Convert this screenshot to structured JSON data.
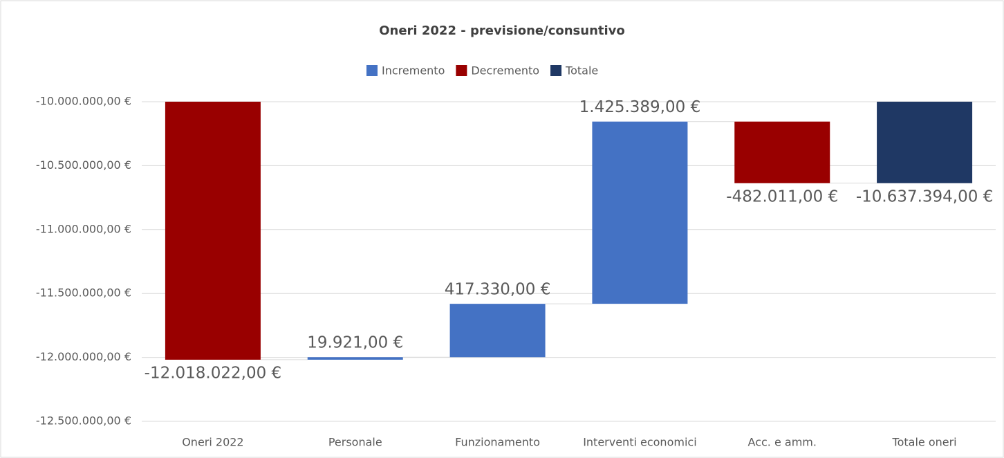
{
  "chart_data": {
    "type": "waterfall",
    "title": "Oneri 2022 - previsione/consuntivo",
    "legend": [
      {
        "name": "Incremento",
        "color": "#4472c4"
      },
      {
        "name": "Decremento",
        "color": "#990000"
      },
      {
        "name": "Totale",
        "color": "#1f3864"
      }
    ],
    "categories": [
      "Oneri 2022",
      "Personale",
      "Funzionamento",
      "Interventi economici",
      "Acc. e amm.",
      "Totale oneri"
    ],
    "values": [
      -12018022,
      19921,
      417330,
      1425389,
      -482011,
      -10637394
    ],
    "value_labels": [
      "-12.018.022,00 €",
      "19.921,00 €",
      "417.330,00 €",
      "1.425.389,00 €",
      "-482.011,00 €",
      "-10.637.394,00 €"
    ],
    "bar_colors": [
      "#990000",
      "#4472c4",
      "#4472c4",
      "#4472c4",
      "#990000",
      "#1f3864"
    ],
    "is_total": [
      true,
      false,
      false,
      false,
      false,
      true
    ],
    "ylim": [
      -12500000,
      -10000000
    ],
    "yticks": [
      {
        "value": -12500000,
        "label": "-12.500.000,00 €"
      },
      {
        "value": -12000000,
        "label": "-12.000.000,00 €"
      },
      {
        "value": -11500000,
        "label": "-11.500.000,00 €"
      },
      {
        "value": -11000000,
        "label": "-11.000.000,00 €"
      },
      {
        "value": -10500000,
        "label": "-10.500.000,00 €"
      },
      {
        "value": -10000000,
        "label": "-10.000.000,00 €"
      }
    ],
    "grid": true
  }
}
